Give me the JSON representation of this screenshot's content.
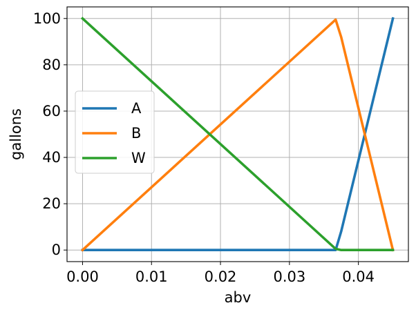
{
  "chart_data": {
    "type": "line",
    "xlabel": "abv",
    "ylabel": "gallons",
    "xlim": [
      -0.00225,
      0.04725
    ],
    "ylim": [
      -5,
      105
    ],
    "xticks": [
      0.0,
      0.01,
      0.02,
      0.03,
      0.04
    ],
    "xtick_labels": [
      "0.00",
      "0.01",
      "0.02",
      "0.03",
      "0.04"
    ],
    "yticks": [
      0,
      20,
      40,
      60,
      80,
      100
    ],
    "ytick_labels": [
      "0",
      "20",
      "40",
      "60",
      "80",
      "100"
    ],
    "grid": true,
    "legend_position": "center-left",
    "series": [
      {
        "name": "A",
        "color": "#1f77b4",
        "x": [
          0.0,
          0.0367,
          0.0375,
          0.045
        ],
        "y": [
          0,
          0,
          8,
          100
        ]
      },
      {
        "name": "B",
        "color": "#ff7f0e",
        "x": [
          0.0,
          0.0367,
          0.0375,
          0.045
        ],
        "y": [
          0,
          99.5,
          92,
          0
        ]
      },
      {
        "name": "W",
        "color": "#2ca02c",
        "x": [
          0.0,
          0.0367,
          0.0375,
          0.045
        ],
        "y": [
          100,
          0.5,
          0,
          0
        ]
      }
    ]
  }
}
